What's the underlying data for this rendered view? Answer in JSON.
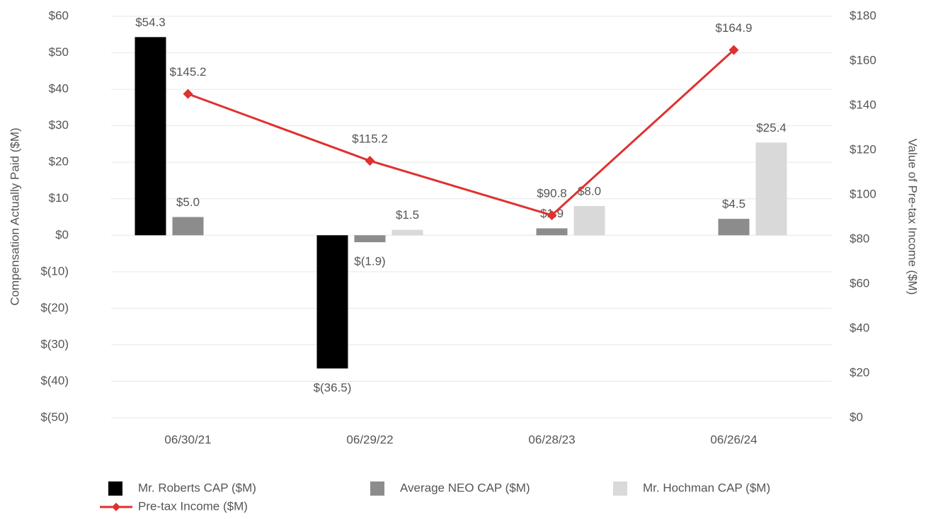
{
  "chart_data": {
    "type": "bar",
    "categories": [
      "06/30/21",
      "06/29/22",
      "06/28/23",
      "06/26/24"
    ],
    "ylabel": "Compensation Actually Paid ($M)",
    "y2label": "Value of Pre-tax Income ($M)",
    "ylim": [
      -50,
      60
    ],
    "yticks": [
      {
        "value": -50,
        "label": "$(50)"
      },
      {
        "value": -40,
        "label": "$(40)"
      },
      {
        "value": -30,
        "label": "$(30)"
      },
      {
        "value": -20,
        "label": "$(20)"
      },
      {
        "value": -10,
        "label": "$(10)"
      },
      {
        "value": 0,
        "label": "$0"
      },
      {
        "value": 10,
        "label": "$10"
      },
      {
        "value": 20,
        "label": "$20"
      },
      {
        "value": 30,
        "label": "$30"
      },
      {
        "value": 40,
        "label": "$40"
      },
      {
        "value": 50,
        "label": "$50"
      },
      {
        "value": 60,
        "label": "$60"
      }
    ],
    "y2lim": [
      0,
      180
    ],
    "y2ticks": [
      {
        "value": 0,
        "label": "$0"
      },
      {
        "value": 20,
        "label": "$20"
      },
      {
        "value": 40,
        "label": "$40"
      },
      {
        "value": 60,
        "label": "$60"
      },
      {
        "value": 80,
        "label": "$80"
      },
      {
        "value": 100,
        "label": "$100"
      },
      {
        "value": 120,
        "label": "$120"
      },
      {
        "value": 140,
        "label": "$140"
      },
      {
        "value": 160,
        "label": "$160"
      },
      {
        "value": 180,
        "label": "$180"
      }
    ],
    "grid": true,
    "legend": "bottom",
    "series": [
      {
        "name": "Mr. Roberts CAP ($M)",
        "type": "bar",
        "color": "#000000",
        "values": [
          54.3,
          -36.5,
          null,
          null
        ],
        "value_labels": [
          "$54.3",
          "$(36.5)",
          null,
          null
        ]
      },
      {
        "name": "Average NEO CAP ($M)",
        "type": "bar",
        "color": "#8c8c8c",
        "values": [
          5.0,
          -1.9,
          1.9,
          4.5
        ],
        "value_labels": [
          "$5.0",
          "$(1.9)",
          "$1.9",
          "$4.5"
        ]
      },
      {
        "name": "Mr. Hochman CAP ($M)",
        "type": "bar",
        "color": "#d9d9d9",
        "values": [
          null,
          1.5,
          8.0,
          25.4
        ],
        "value_labels": [
          null,
          "$1.5",
          "$8.0",
          "$25.4"
        ]
      },
      {
        "name": "Pre-tax Income ($M)",
        "type": "line",
        "axis": "y2",
        "color": "#e03030",
        "values": [
          145.2,
          115.2,
          90.8,
          164.9
        ],
        "value_labels": [
          "$145.2",
          "$115.2",
          "$90.8",
          "$164.9"
        ]
      }
    ]
  }
}
